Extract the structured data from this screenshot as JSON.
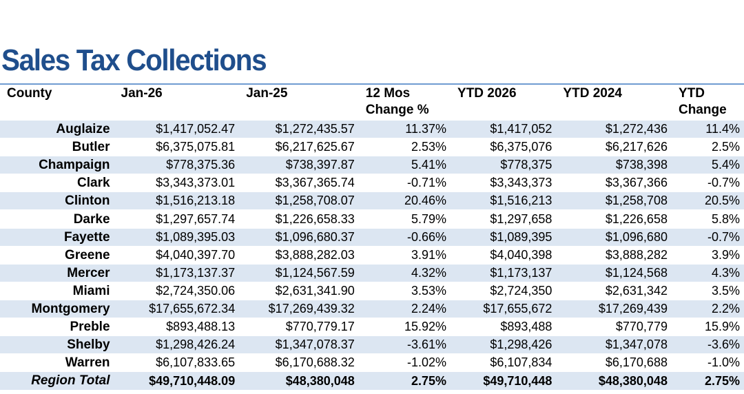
{
  "title": "Sales Tax Collections",
  "headers": [
    "County",
    "Jan-26",
    "Jan-25",
    "12 Mos\nChange %",
    "YTD 2026",
    "YTD 2024",
    "YTD\nChange"
  ],
  "rows": [
    [
      "Auglaize",
      "$1,417,052.47",
      "$1,272,435.57",
      "11.37%",
      "$1,417,052",
      "$1,272,436",
      "11.4%"
    ],
    [
      "Butler",
      "$6,375,075.81",
      "$6,217,625.67",
      "2.53%",
      "$6,375,076",
      "$6,217,626",
      "2.5%"
    ],
    [
      "Champaign",
      "$778,375.36",
      "$738,397.87",
      "5.41%",
      "$778,375",
      "$738,398",
      "5.4%"
    ],
    [
      "Clark",
      "$3,343,373.01",
      "$3,367,365.74",
      "-0.71%",
      "$3,343,373",
      "$3,367,366",
      "-0.7%"
    ],
    [
      "Clinton",
      "$1,516,213.18",
      "$1,258,708.07",
      "20.46%",
      "$1,516,213",
      "$1,258,708",
      "20.5%"
    ],
    [
      "Darke",
      "$1,297,657.74",
      "$1,226,658.33",
      "5.79%",
      "$1,297,658",
      "$1,226,658",
      "5.8%"
    ],
    [
      "Fayette",
      "$1,089,395.03",
      "$1,096,680.37",
      "-0.66%",
      "$1,089,395",
      "$1,096,680",
      "-0.7%"
    ],
    [
      "Greene",
      "$4,040,397.70",
      "$3,888,282.03",
      "3.91%",
      "$4,040,398",
      "$3,888,282",
      "3.9%"
    ],
    [
      "Mercer",
      "$1,173,137.37",
      "$1,124,567.59",
      "4.32%",
      "$1,173,137",
      "$1,124,568",
      "4.3%"
    ],
    [
      "Miami",
      "$2,724,350.06",
      "$2,631,341.90",
      "3.53%",
      "$2,724,350",
      "$2,631,342",
      "3.5%"
    ],
    [
      "Montgomery",
      "$17,655,672.34",
      "$17,269,439.32",
      "2.24%",
      "$17,655,672",
      "$17,269,439",
      "2.2%"
    ],
    [
      "Preble",
      "$893,488.13",
      "$770,779.17",
      "15.92%",
      "$893,488",
      "$770,779",
      "15.9%"
    ],
    [
      "Shelby",
      "$1,298,426.24",
      "$1,347,078.37",
      "-3.61%",
      "$1,298,426",
      "$1,347,078",
      "-3.6%"
    ],
    [
      "Warren",
      "$6,107,833.65",
      "$6,170,688.32",
      "-1.02%",
      "$6,107,834",
      "$6,170,688",
      "-1.0%"
    ]
  ],
  "total": [
    "Region Total",
    "$49,710,448.09",
    "$48,380,048",
    "2.75%",
    "$49,710,448",
    "$48,380,048",
    "2.75%"
  ],
  "colors": {
    "title": "#1f4e8c",
    "rule": "#6f9bd1",
    "row_shade": "#dce6f2"
  }
}
